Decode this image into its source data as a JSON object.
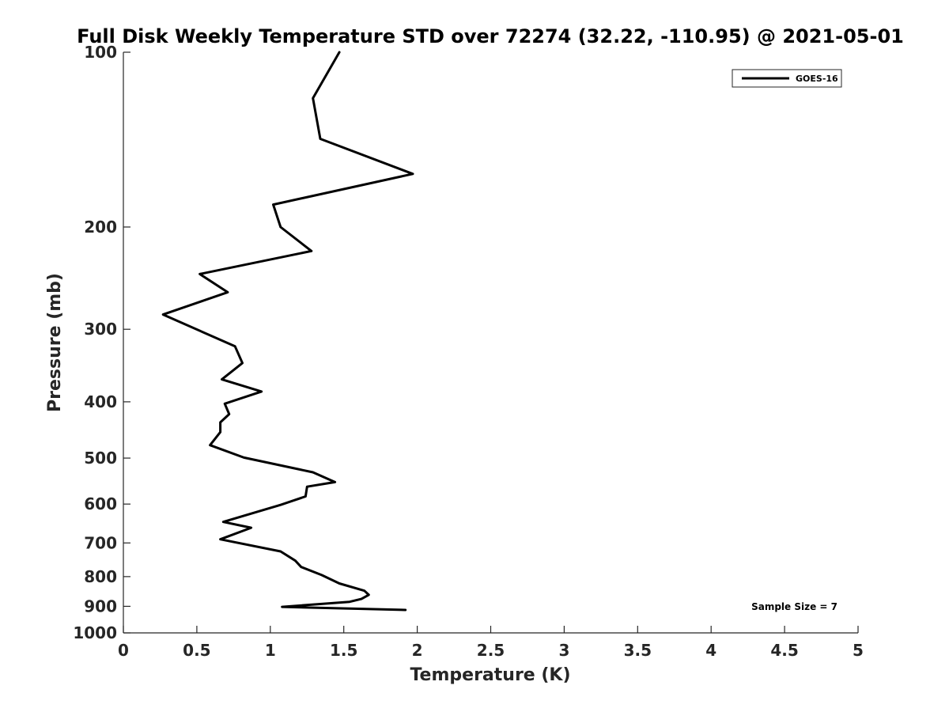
{
  "chart_data": {
    "type": "line",
    "title": "Full Disk Weekly Temperature STD over 72274 (32.22, -110.95) @ 2021-05-01",
    "xlabel": "Temperature (K)",
    "ylabel": "Pressure (mb)",
    "xlim": [
      0,
      5
    ],
    "ylim": [
      100,
      1000
    ],
    "y_scale": "log",
    "y_reversed": true,
    "x_ticks": [
      "0",
      "0.5",
      "1",
      "1.5",
      "2",
      "2.5",
      "3",
      "3.5",
      "4",
      "4.5",
      "5"
    ],
    "y_ticks": [
      "100",
      "200",
      "300",
      "400",
      "500",
      "600",
      "700",
      "800",
      "900",
      "1000"
    ],
    "grid": false,
    "legend": {
      "position": "top-right",
      "entries": [
        "GOES-16"
      ]
    },
    "annotation": "Sample Size = 7",
    "line_color": "#000000",
    "series": [
      {
        "name": "GOES-16",
        "points": [
          [
            1.47,
            100
          ],
          [
            1.29,
            120
          ],
          [
            1.34,
            141
          ],
          [
            1.97,
            162
          ],
          [
            1.02,
            183
          ],
          [
            1.07,
            200
          ],
          [
            1.28,
            220
          ],
          [
            0.52,
            241
          ],
          [
            0.71,
            259
          ],
          [
            0.27,
            283
          ],
          [
            0.76,
            321
          ],
          [
            0.81,
            343
          ],
          [
            0.67,
            366
          ],
          [
            0.94,
            384
          ],
          [
            0.69,
            403
          ],
          [
            0.72,
            420
          ],
          [
            0.66,
            434
          ],
          [
            0.66,
            451
          ],
          [
            0.59,
            475
          ],
          [
            0.82,
            499
          ],
          [
            1.29,
            529
          ],
          [
            1.44,
            550
          ],
          [
            1.25,
            560
          ],
          [
            1.24,
            582
          ],
          [
            1.07,
            602
          ],
          [
            0.68,
            644
          ],
          [
            0.87,
            659
          ],
          [
            0.66,
            690
          ],
          [
            1.07,
            724
          ],
          [
            1.17,
            751
          ],
          [
            1.21,
            770
          ],
          [
            1.35,
            795
          ],
          [
            1.47,
            822
          ],
          [
            1.64,
            846
          ],
          [
            1.67,
            860
          ],
          [
            1.62,
            874
          ],
          [
            1.54,
            884
          ],
          [
            1.08,
            902
          ],
          [
            1.92,
            913
          ]
        ]
      }
    ]
  }
}
